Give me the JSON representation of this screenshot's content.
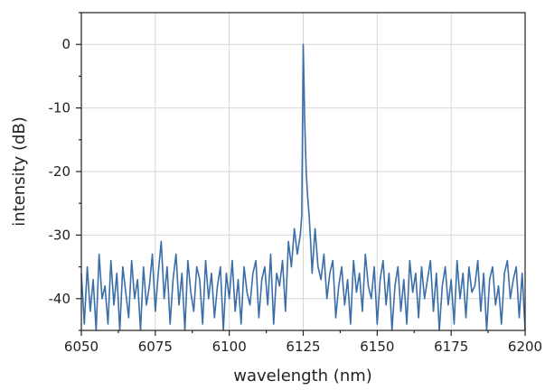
{
  "chart_data": {
    "type": "line",
    "title": "",
    "xlabel": "wavelength (nm)",
    "ylabel": "intensity (dB)",
    "xlim": [
      6050,
      6200
    ],
    "ylim": [
      -45,
      5
    ],
    "x_ticks": [
      6050,
      6075,
      6100,
      6125,
      6150,
      6175,
      6200
    ],
    "y_ticks": [
      0,
      -10,
      -20,
      -30,
      -40
    ],
    "x_tick_labels": [
      "6050",
      "6075",
      "6100",
      "6125",
      "6150",
      "6175",
      "6200"
    ],
    "y_tick_labels": [
      "0",
      "-10",
      "-20",
      "-30",
      "-40"
    ],
    "grid": true,
    "legend": "none",
    "colors": {
      "series": "#3a6ea8",
      "grid": "#d7d7d7",
      "axes": "#222222"
    },
    "series": [
      {
        "x": [
          6050,
          6051,
          6052,
          6053,
          6054,
          6055,
          6056,
          6057,
          6058,
          6059,
          6060,
          6061,
          6062,
          6063,
          6064,
          6065,
          6066,
          6067,
          6068,
          6069,
          6070,
          6071,
          6072,
          6073,
          6074,
          6075,
          6076,
          6077,
          6078,
          6079,
          6080,
          6081,
          6082,
          6083,
          6084,
          6085,
          6086,
          6087,
          6088,
          6089,
          6090,
          6091,
          6092,
          6093,
          6094,
          6095,
          6096,
          6097,
          6098,
          6099,
          6100,
          6101,
          6102,
          6103,
          6104,
          6105,
          6106,
          6107,
          6108,
          6109,
          6110,
          6111,
          6112,
          6113,
          6114,
          6115,
          6116,
          6117,
          6118,
          6119,
          6120,
          6121,
          6122,
          6123,
          6124,
          6124.5,
          6125,
          6125.5,
          6126,
          6126.5,
          6127,
          6127.5,
          6128,
          6129,
          6130,
          6131,
          6132,
          6133,
          6134,
          6135,
          6136,
          6137,
          6138,
          6139,
          6140,
          6141,
          6142,
          6143,
          6144,
          6145,
          6146,
          6147,
          6148,
          6149,
          6150,
          6151,
          6152,
          6153,
          6154,
          6155,
          6156,
          6157,
          6158,
          6159,
          6160,
          6161,
          6162,
          6163,
          6164,
          6165,
          6166,
          6167,
          6168,
          6169,
          6170,
          6171,
          6172,
          6173,
          6174,
          6175,
          6176,
          6177,
          6178,
          6179,
          6180,
          6181,
          6182,
          6183,
          6184,
          6185,
          6186,
          6187,
          6188,
          6189,
          6190,
          6191,
          6192,
          6193,
          6194,
          6195,
          6196,
          6197,
          6198,
          6199,
          6200
        ],
        "values": [
          -36,
          -44,
          -35,
          -42,
          -37,
          -45,
          -33,
          -40,
          -38,
          -44,
          -34,
          -41,
          -36,
          -45,
          -35,
          -39,
          -43,
          -34,
          -40,
          -37,
          -45,
          -35,
          -41,
          -38,
          -33,
          -42,
          -36,
          -31,
          -40,
          -35,
          -44,
          -37,
          -33,
          -41,
          -36,
          -45,
          -34,
          -39,
          -42,
          -35,
          -37,
          -44,
          -34,
          -40,
          -36,
          -43,
          -38,
          -35,
          -45,
          -36,
          -40,
          -34,
          -42,
          -37,
          -44,
          -35,
          -39,
          -41,
          -36,
          -34,
          -43,
          -37,
          -35,
          -41,
          -33,
          -44,
          -36,
          -38,
          -34,
          -42,
          -31,
          -35,
          -29,
          -33,
          -30,
          -27,
          0,
          -12,
          -20,
          -24,
          -27,
          -31,
          -36,
          -29,
          -35,
          -37,
          -33,
          -40,
          -36,
          -34,
          -43,
          -38,
          -35,
          -41,
          -37,
          -44,
          -34,
          -39,
          -36,
          -42,
          -33,
          -38,
          -40,
          -35,
          -44,
          -37,
          -34,
          -41,
          -36,
          -45,
          -38,
          -35,
          -42,
          -37,
          -44,
          -34,
          -39,
          -36,
          -43,
          -35,
          -40,
          -37,
          -34,
          -42,
          -36,
          -45,
          -38,
          -35,
          -41,
          -37,
          -44,
          -34,
          -40,
          -36,
          -43,
          -35,
          -39,
          -38,
          -34,
          -42,
          -36,
          -45,
          -37,
          -35,
          -41,
          -38,
          -44,
          -36,
          -34,
          -40,
          -37,
          -35,
          -43,
          -36,
          -45
        ]
      }
    ]
  }
}
